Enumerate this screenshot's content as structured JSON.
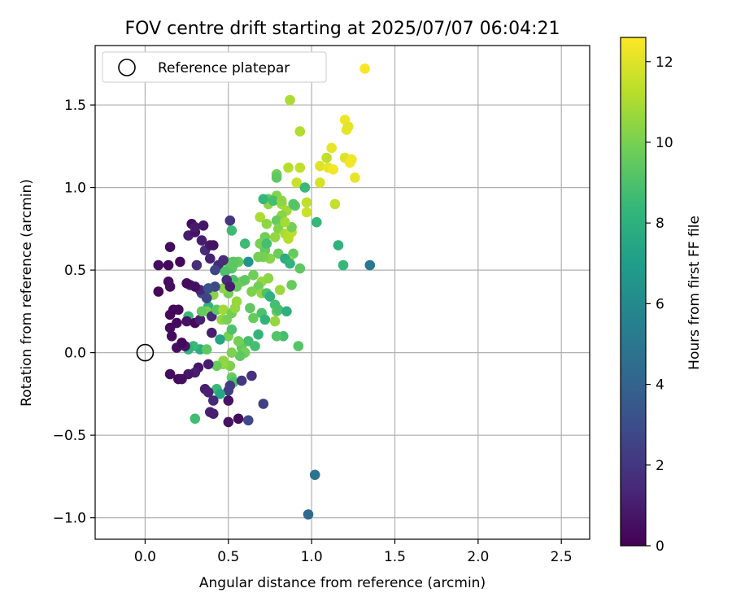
{
  "chart_data": {
    "type": "scatter",
    "title": "FOV centre drift starting at 2025/07/07 06:04:21",
    "xlabel": "Angular distance from reference (arcmin)",
    "ylabel": "Rotation from reference (arcmin)",
    "xlim": [
      -0.3,
      2.67
    ],
    "ylim": [
      -1.13,
      1.86
    ],
    "xticks": [
      0.0,
      0.5,
      1.0,
      1.5,
      2.0,
      2.5
    ],
    "xtick_labels": [
      "0.0",
      "0.5",
      "1.0",
      "1.5",
      "2.0",
      "2.5"
    ],
    "yticks": [
      -1.0,
      -0.5,
      0.0,
      0.5,
      1.0,
      1.5
    ],
    "ytick_labels": [
      "−1.0",
      "−0.5",
      "0.0",
      "0.5",
      "1.0",
      "1.5"
    ],
    "grid": true,
    "legend": {
      "location": "upper-left",
      "entries": [
        "Reference platepar"
      ]
    },
    "reference_point": {
      "x": 0.0,
      "y": 0.0
    },
    "colorbar": {
      "label": "Hours from first FF file",
      "colormap": "viridis",
      "range": [
        0,
        12.6
      ],
      "ticks": [
        0,
        2,
        4,
        6,
        8,
        10,
        12
      ],
      "tick_labels": [
        "0",
        "2",
        "4",
        "6",
        "8",
        "10",
        "12"
      ],
      "stops": [
        "#440154",
        "#482878",
        "#3e4989",
        "#31688e",
        "#26828e",
        "#1f9e89",
        "#35b779",
        "#6ece58",
        "#b5de2b",
        "#fde725"
      ]
    },
    "points": [
      [
        1.32,
        1.72,
        12.5
      ],
      [
        0.87,
        1.53,
        11.0
      ],
      [
        0.93,
        1.34,
        11.1
      ],
      [
        1.2,
        1.41,
        12.3
      ],
      [
        1.21,
        1.35,
        12.2
      ],
      [
        1.22,
        1.37,
        12.1
      ],
      [
        1.12,
        1.24,
        12.2
      ],
      [
        1.05,
        1.13,
        12.0
      ],
      [
        1.1,
        1.12,
        12.2
      ],
      [
        1.13,
        1.11,
        12.4
      ],
      [
        1.2,
        1.18,
        12.0
      ],
      [
        1.24,
        1.17,
        12.3
      ],
      [
        1.23,
        1.15,
        12.4
      ],
      [
        1.26,
        1.06,
        12.2
      ],
      [
        1.09,
        1.18,
        11.4
      ],
      [
        0.86,
        1.12,
        11.2
      ],
      [
        0.93,
        1.12,
        11.4
      ],
      [
        0.79,
        1.08,
        9.8
      ],
      [
        0.79,
        1.06,
        9.4
      ],
      [
        0.91,
        1.03,
        11.6
      ],
      [
        0.96,
        1.0,
        8.5
      ],
      [
        1.05,
        1.03,
        11.8
      ],
      [
        0.97,
        0.91,
        11.4
      ],
      [
        0.97,
        0.85,
        11.6
      ],
      [
        1.14,
        0.9,
        11.5
      ],
      [
        0.74,
        0.93,
        9.6
      ],
      [
        0.74,
        0.9,
        10.4
      ],
      [
        0.79,
        0.95,
        10.2
      ],
      [
        0.82,
        0.9,
        10.8
      ],
      [
        0.85,
        0.86,
        10.8
      ],
      [
        0.82,
        0.83,
        10.3
      ],
      [
        0.9,
        0.89,
        9.4
      ],
      [
        0.69,
        0.82,
        11.0
      ],
      [
        0.73,
        0.78,
        10.4
      ],
      [
        0.79,
        0.8,
        9.6
      ],
      [
        0.8,
        0.75,
        10.2
      ],
      [
        0.84,
        0.72,
        11.0
      ],
      [
        0.88,
        0.73,
        11.3
      ],
      [
        0.86,
        0.69,
        11.2
      ],
      [
        0.78,
        0.7,
        10.5
      ],
      [
        1.03,
        0.79,
        8.4
      ],
      [
        0.72,
        0.7,
        9.8
      ],
      [
        0.69,
        0.66,
        10.0
      ],
      [
        0.6,
        0.66,
        8.6
      ],
      [
        0.72,
        0.62,
        9.5
      ],
      [
        0.75,
        0.57,
        10.3
      ],
      [
        0.8,
        0.6,
        9.7
      ],
      [
        0.89,
        0.6,
        9.6
      ],
      [
        0.86,
        0.56,
        10.6
      ],
      [
        0.84,
        0.57,
        7.8
      ],
      [
        0.71,
        0.58,
        10.0
      ],
      [
        0.68,
        0.58,
        9.9
      ],
      [
        0.87,
        0.54,
        8.2
      ],
      [
        0.93,
        0.51,
        9.4
      ],
      [
        1.16,
        0.65,
        8.1
      ],
      [
        1.19,
        0.53,
        8.4
      ],
      [
        1.35,
        0.53,
        5.0
      ],
      [
        0.62,
        0.55,
        6.5
      ],
      [
        0.56,
        0.55,
        9.6
      ],
      [
        0.53,
        0.55,
        9.2
      ],
      [
        0.49,
        0.55,
        9.5
      ],
      [
        0.52,
        0.51,
        9.2
      ],
      [
        0.53,
        0.53,
        9.4
      ],
      [
        0.58,
        0.43,
        9.9
      ],
      [
        0.53,
        0.44,
        8.9
      ],
      [
        0.6,
        0.44,
        9.4
      ],
      [
        0.65,
        0.47,
        9.8
      ],
      [
        0.7,
        0.43,
        10.6
      ],
      [
        0.74,
        0.45,
        10.4
      ],
      [
        0.68,
        0.4,
        9.8
      ],
      [
        0.64,
        0.37,
        10.1
      ],
      [
        0.7,
        0.36,
        10.5
      ],
      [
        0.73,
        0.36,
        9.0
      ],
      [
        0.81,
        0.38,
        10.7
      ],
      [
        0.75,
        0.34,
        8.0
      ],
      [
        0.78,
        0.29,
        8.8
      ],
      [
        0.88,
        0.41,
        9.6
      ],
      [
        0.63,
        0.27,
        9.4
      ],
      [
        0.7,
        0.24,
        9.0
      ],
      [
        0.65,
        0.21,
        9.6
      ],
      [
        0.72,
        0.2,
        8.2
      ],
      [
        0.79,
        0.25,
        9.6
      ],
      [
        0.78,
        0.19,
        10.6
      ],
      [
        0.8,
        0.26,
        8.9
      ],
      [
        0.85,
        0.25,
        8.0
      ],
      [
        0.83,
        0.1,
        8.8
      ],
      [
        0.79,
        0.1,
        9.1
      ],
      [
        0.92,
        0.04,
        9.2
      ],
      [
        0.68,
        0.11,
        8.3
      ],
      [
        0.62,
        0.07,
        8.8
      ],
      [
        0.66,
        0.04,
        8.8
      ],
      [
        0.58,
        0.03,
        9.5
      ],
      [
        0.6,
        0.0,
        9.9
      ],
      [
        0.57,
        -0.02,
        9.4
      ],
      [
        0.52,
        0.0,
        10.1
      ],
      [
        0.47,
        -0.05,
        10.4
      ],
      [
        0.51,
        -0.08,
        10.1
      ],
      [
        0.47,
        -0.07,
        10.5
      ],
      [
        0.43,
        -0.08,
        9.6
      ],
      [
        0.52,
        -0.15,
        9.6
      ],
      [
        0.53,
        -0.18,
        9.0
      ],
      [
        0.58,
        -0.17,
        2.0
      ],
      [
        0.64,
        -0.14,
        1.8
      ],
      [
        0.51,
        -0.2,
        2.2
      ],
      [
        0.5,
        -0.23,
        2.3
      ],
      [
        0.43,
        -0.22,
        8.5
      ],
      [
        0.45,
        -0.25,
        7.4
      ],
      [
        0.36,
        -0.22,
        1.0
      ],
      [
        0.38,
        -0.24,
        1.2
      ],
      [
        0.41,
        -0.29,
        1.4
      ],
      [
        0.5,
        -0.29,
        0.6
      ],
      [
        0.39,
        -0.36,
        1.2
      ],
      [
        0.41,
        -0.37,
        1.0
      ],
      [
        0.3,
        -0.4,
        8.7
      ],
      [
        0.56,
        -0.4,
        0.4
      ],
      [
        0.62,
        -0.41,
        2.8
      ],
      [
        0.5,
        -0.42,
        0.6
      ],
      [
        0.71,
        -0.31,
        2.4
      ],
      [
        0.38,
        -0.07,
        1.0
      ],
      [
        0.32,
        -0.09,
        0.8
      ],
      [
        0.3,
        -0.12,
        1.1
      ],
      [
        0.26,
        -0.13,
        0.8
      ],
      [
        0.2,
        -0.16,
        0.3
      ],
      [
        0.22,
        -0.16,
        0.5
      ],
      [
        0.15,
        -0.13,
        0.4
      ],
      [
        0.33,
        0.02,
        7.8
      ],
      [
        0.37,
        0.02,
        9.4
      ],
      [
        0.29,
        0.04,
        8.5
      ],
      [
        0.26,
        0.02,
        8.2
      ],
      [
        0.24,
        0.04,
        0.7
      ],
      [
        0.19,
        0.03,
        0.5
      ],
      [
        0.22,
        0.06,
        0.3
      ],
      [
        0.16,
        0.1,
        0.4
      ],
      [
        0.15,
        0.15,
        0.4
      ],
      [
        0.19,
        0.18,
        0.3
      ],
      [
        0.15,
        0.23,
        0.3
      ],
      [
        0.17,
        0.26,
        0.2
      ],
      [
        0.2,
        0.26,
        0.3
      ],
      [
        0.26,
        0.22,
        8.5
      ],
      [
        0.25,
        0.19,
        0.6
      ],
      [
        0.3,
        0.18,
        0.3
      ],
      [
        0.33,
        0.2,
        1.1
      ],
      [
        0.38,
        0.28,
        8.2
      ],
      [
        0.37,
        0.25,
        9.9
      ],
      [
        0.34,
        0.25,
        9.6
      ],
      [
        0.4,
        0.22,
        1.4
      ],
      [
        0.43,
        0.26,
        9.3
      ],
      [
        0.47,
        0.26,
        10.8
      ],
      [
        0.46,
        0.2,
        10.5
      ],
      [
        0.49,
        0.2,
        10.0
      ],
      [
        0.52,
        0.24,
        9.9
      ],
      [
        0.54,
        0.27,
        10.5
      ],
      [
        0.55,
        0.31,
        10.6
      ],
      [
        0.5,
        0.36,
        9.9
      ],
      [
        0.47,
        0.39,
        10.4
      ],
      [
        0.41,
        0.35,
        10.3
      ],
      [
        0.5,
        0.1,
        10.0
      ],
      [
        0.45,
        0.08,
        7.4
      ],
      [
        0.52,
        0.14,
        9.0
      ],
      [
        0.56,
        0.07,
        9.9
      ],
      [
        0.4,
        0.12,
        1.0
      ],
      [
        0.34,
        0.36,
        2.8
      ],
      [
        0.37,
        0.33,
        2.6
      ],
      [
        0.33,
        0.38,
        1.3
      ],
      [
        0.27,
        0.41,
        0.9
      ],
      [
        0.3,
        0.4,
        0.5
      ],
      [
        0.25,
        0.42,
        0.4
      ],
      [
        0.14,
        0.43,
        0.4
      ],
      [
        0.15,
        0.4,
        0.5
      ],
      [
        0.08,
        0.37,
        0.2
      ],
      [
        0.14,
        0.53,
        0.3
      ],
      [
        0.08,
        0.53,
        0.5
      ],
      [
        0.21,
        0.55,
        0.2
      ],
      [
        0.31,
        0.53,
        1.6
      ],
      [
        0.39,
        0.57,
        1.2
      ],
      [
        0.44,
        0.53,
        1.4
      ],
      [
        0.47,
        0.56,
        1.6
      ],
      [
        0.42,
        0.5,
        2.6
      ],
      [
        0.48,
        0.49,
        9.0
      ],
      [
        0.49,
        0.44,
        1.5
      ],
      [
        0.55,
        0.4,
        9.6
      ],
      [
        0.51,
        0.4,
        1.0
      ],
      [
        0.42,
        0.4,
        2.8
      ],
      [
        0.38,
        0.39,
        3.2
      ],
      [
        0.15,
        0.64,
        0.4
      ],
      [
        0.36,
        0.62,
        1.6
      ],
      [
        0.39,
        0.65,
        0.9
      ],
      [
        0.41,
        0.65,
        0.6
      ],
      [
        0.34,
        0.68,
        1.0
      ],
      [
        0.26,
        0.71,
        1.0
      ],
      [
        0.3,
        0.73,
        0.6
      ],
      [
        0.28,
        0.78,
        0.4
      ],
      [
        0.3,
        0.76,
        0.9
      ],
      [
        0.35,
        0.77,
        0.8
      ],
      [
        0.51,
        0.8,
        2.0
      ],
      [
        0.52,
        0.74,
        8.6
      ],
      [
        0.71,
        0.93,
        8.4
      ],
      [
        0.77,
        0.92,
        8.8
      ],
      [
        0.82,
        0.92,
        10.4
      ],
      [
        0.89,
        0.9,
        9.2
      ],
      [
        1.02,
        -0.74,
        4.8
      ],
      [
        0.98,
        -0.98,
        4.2
      ],
      [
        0.88,
        0.76,
        9.9
      ],
      [
        0.84,
        0.79,
        10.9
      ],
      [
        0.73,
        0.66,
        8.8
      ]
    ]
  }
}
